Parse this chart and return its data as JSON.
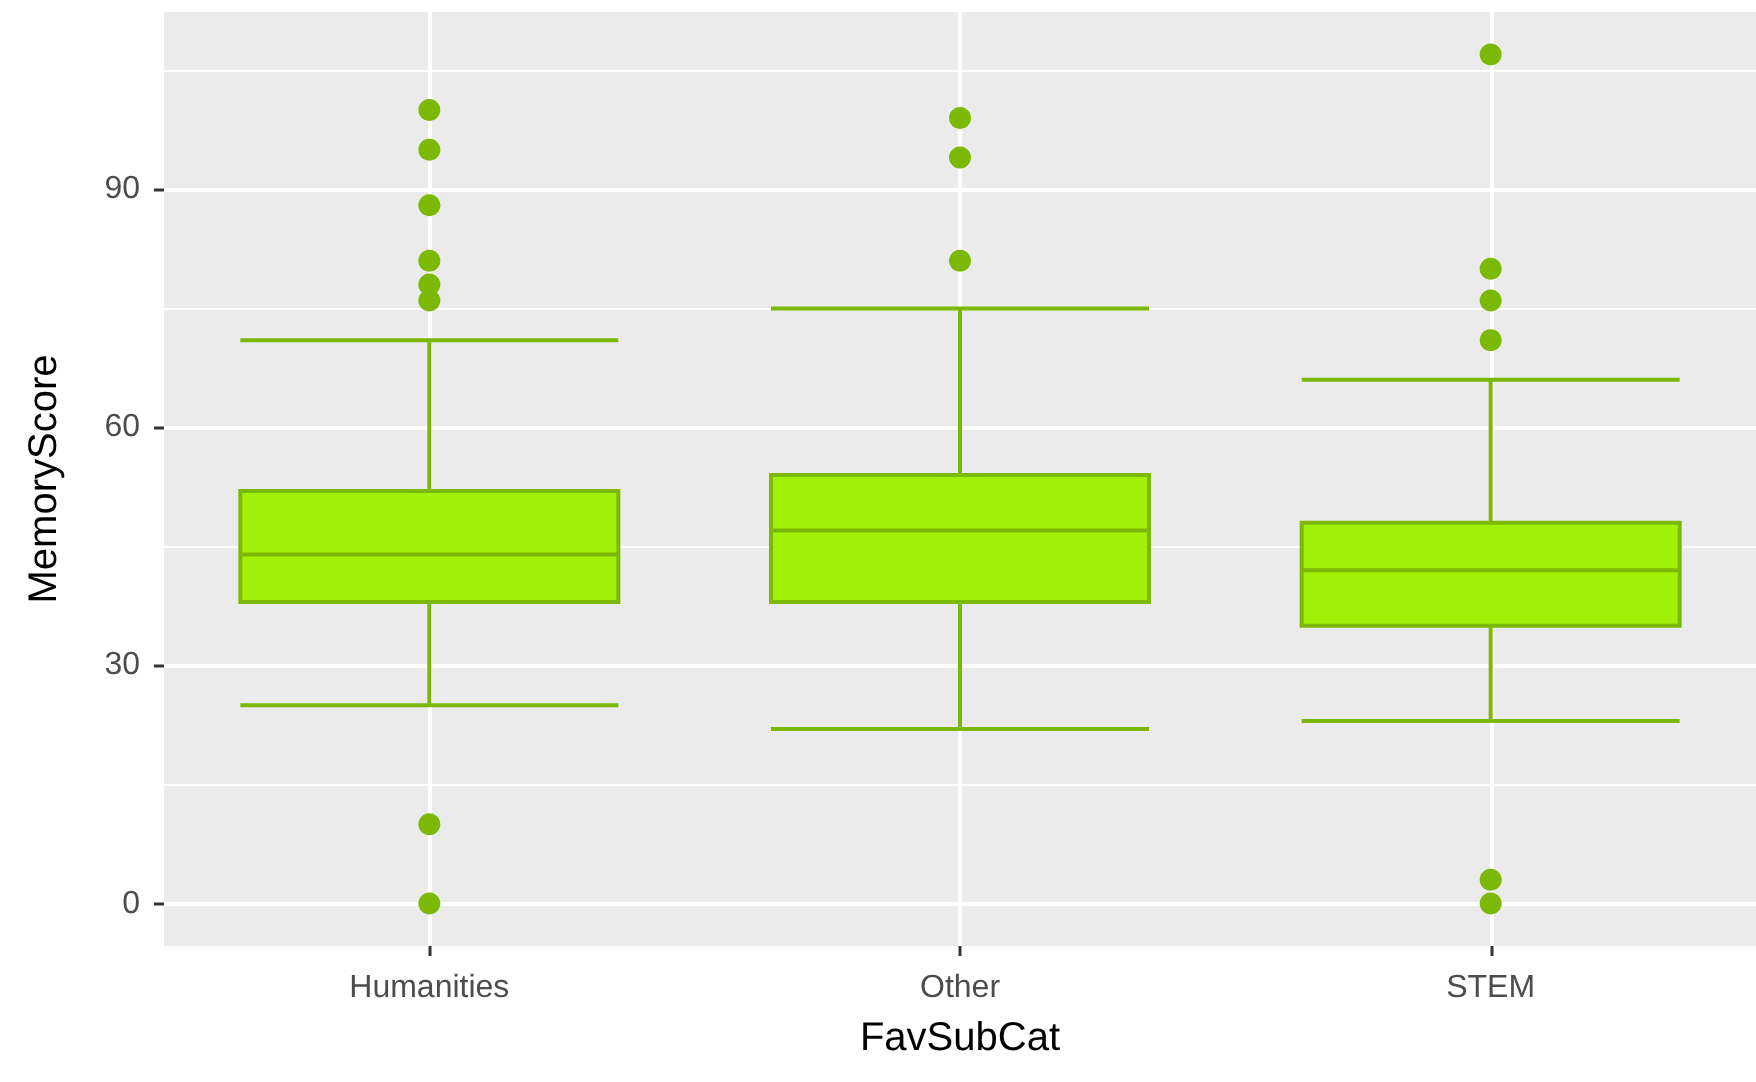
{
  "chart_data": {
    "type": "box",
    "xlabel": "FavSubCat",
    "ylabel": "MemoryScore",
    "categories": [
      "Humanities",
      "Other",
      "STEM"
    ],
    "color": "#a1f008",
    "marker": "circle",
    "boxes": [
      {
        "low": 25,
        "q1": 38,
        "median": 44,
        "q3": 52,
        "high": 71,
        "outliers": [
          100,
          95,
          88,
          81,
          78,
          76,
          10,
          0
        ]
      },
      {
        "low": 22,
        "q1": 38,
        "median": 47,
        "q3": 54,
        "high": 75,
        "outliers": [
          99,
          94,
          81
        ]
      },
      {
        "low": 23,
        "q1": 35,
        "median": 42,
        "q3": 48,
        "high": 66,
        "outliers": [
          107,
          80,
          76,
          71,
          3,
          0
        ]
      }
    ],
    "ylim": [
      -5.35,
      112.35
    ],
    "yticks": [
      0,
      30,
      60,
      90
    ],
    "grid": true
  }
}
